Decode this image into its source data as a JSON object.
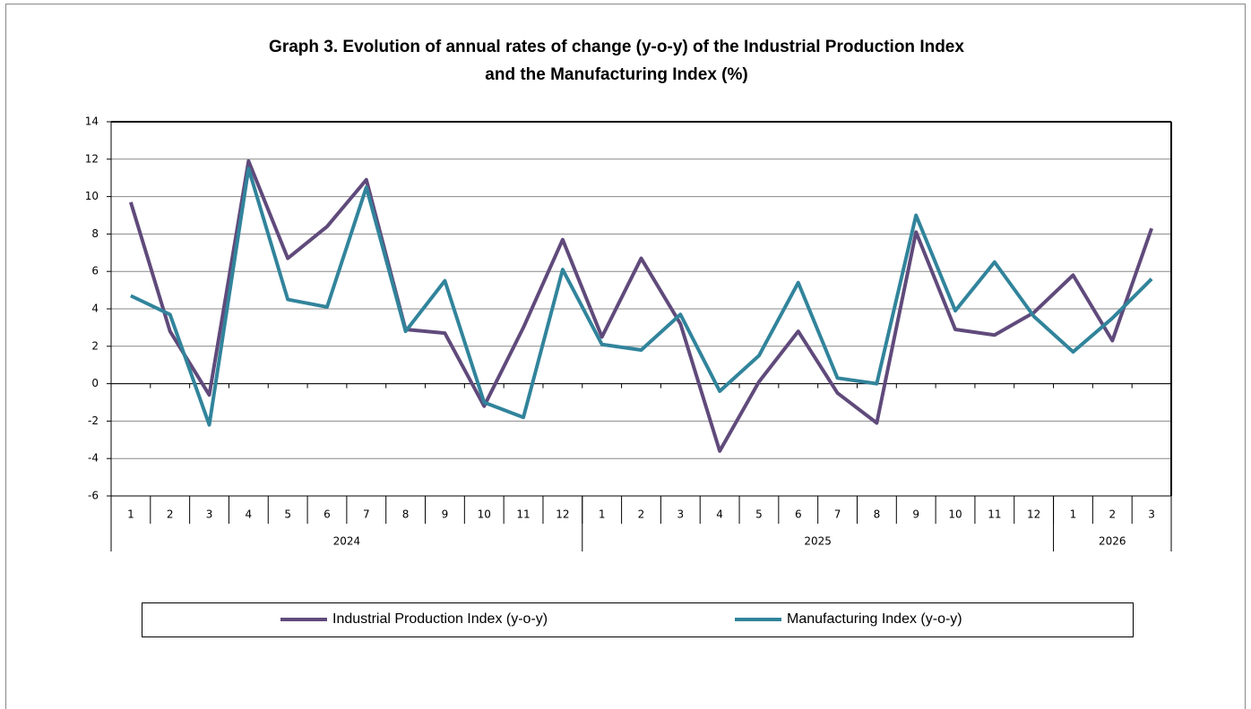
{
  "chart_data": {
    "type": "line",
    "title": [
      "Graph 3. Evolution of annual rates of change (y-o-y) of the Industrial Production Index",
      "and the Manufacturing Index (%)"
    ],
    "categories": [
      "1",
      "2",
      "3",
      "4",
      "5",
      "6",
      "7",
      "8",
      "9",
      "10",
      "11",
      "12",
      "1",
      "2",
      "3",
      "4",
      "5",
      "6",
      "7",
      "8",
      "9",
      "10",
      "11",
      "12",
      "1",
      "2",
      "3"
    ],
    "category_groups": [
      {
        "name": "2024",
        "size": 12
      },
      {
        "name": "2025",
        "size": 12
      },
      {
        "name": "2026",
        "size": 3
      }
    ],
    "series": [
      {
        "name": "Industrial Production Index (y-o-y)",
        "color": "#604a7b",
        "values": [
          9.7,
          2.8,
          -0.6,
          11.9,
          6.7,
          8.4,
          10.9,
          2.9,
          2.7,
          -1.2,
          3.0,
          7.7,
          2.5,
          6.7,
          3.2,
          -3.6,
          0.1,
          2.8,
          -0.5,
          -2.1,
          8.1,
          2.9,
          2.6,
          3.8,
          5.8,
          2.3,
          8.3
        ]
      },
      {
        "name": "Manufacturing Index (y-o-y)",
        "color": "#31849b",
        "values": [
          4.7,
          3.7,
          -2.2,
          11.5,
          4.5,
          4.1,
          10.5,
          2.8,
          5.5,
          -1.0,
          -1.8,
          6.1,
          2.1,
          1.8,
          3.7,
          -0.4,
          1.5,
          5.4,
          0.3,
          0.0,
          9.0,
          3.9,
          6.5,
          3.6,
          1.7,
          3.5,
          5.6
        ]
      }
    ],
    "ylim": [
      -6,
      14
    ],
    "yticks": [
      -6,
      -4,
      -2,
      0,
      2,
      4,
      6,
      8,
      10,
      12,
      14
    ],
    "grid": true,
    "legend": "bottom"
  }
}
